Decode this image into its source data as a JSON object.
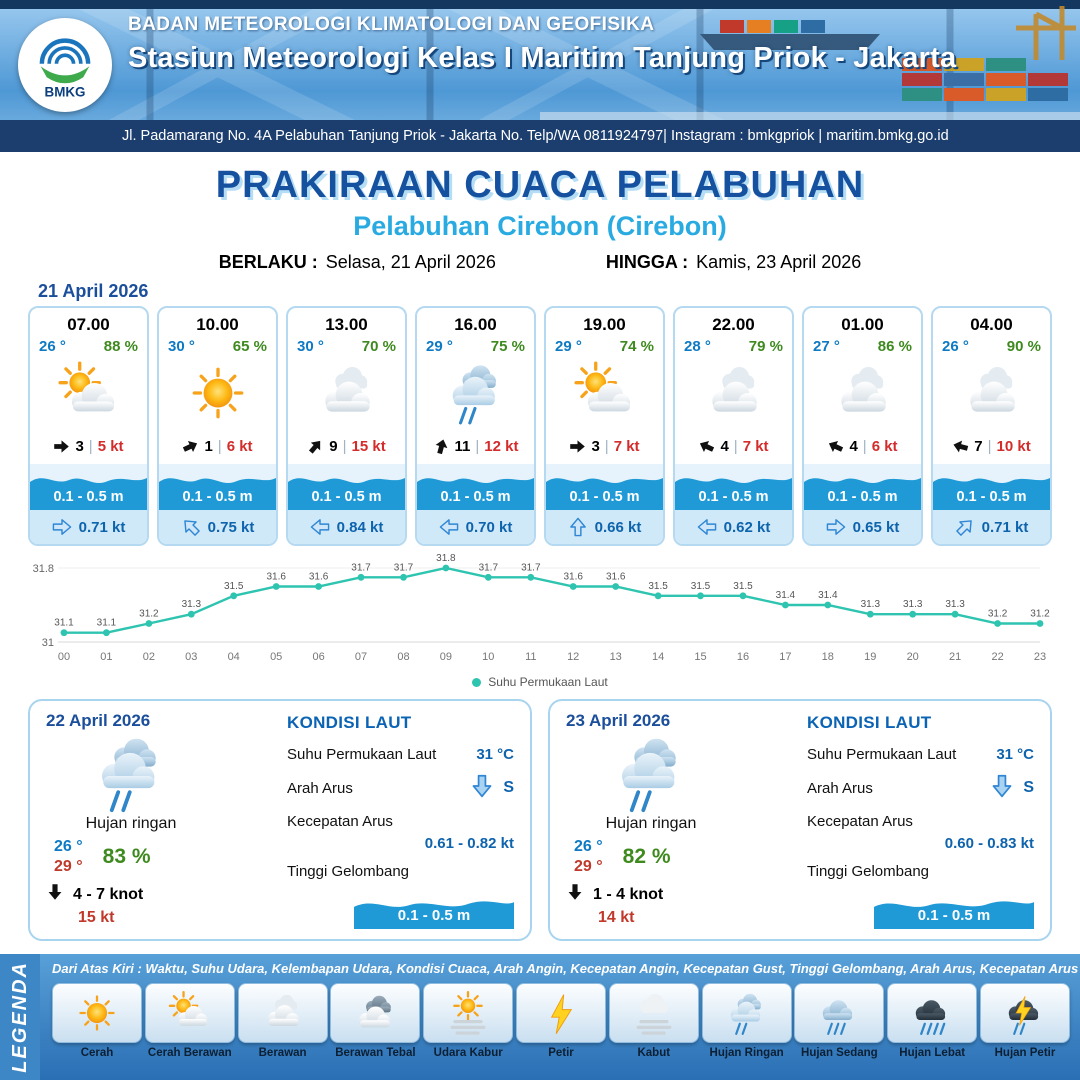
{
  "header": {
    "logo": "BMKG",
    "agency": "BADAN METEOROLOGI KLIMATOLOGI DAN GEOFISIKA",
    "station": "Stasiun Meteorologi Kelas I Maritim Tanjung Priok - Jakarta",
    "address": "Jl. Padamarang No. 4A Pelabuhan Tanjung Priok - Jakarta No. Telp/WA 0811924797| Instagram : bmkgpriok | maritim.bmkg.go.id"
  },
  "title": {
    "main": "PRAKIRAAN CUACA PELABUHAN",
    "port": "Pelabuhan Cirebon (Cirebon)",
    "berlaku_label": "BERLAKU :",
    "berlaku_value": "Selasa, 21 April 2026",
    "hingga_label": "HINGGA :",
    "hingga_value": "Kamis, 23 April 2026"
  },
  "icons": {
    "sep": "|"
  },
  "forecast": {
    "date": "21 April 2026",
    "cards": [
      {
        "time": "07.00",
        "temp": "26 °",
        "humidity": "88 %",
        "icon": "cerah-berawan",
        "wind_speed": "3",
        "gust": "5 kt",
        "wind_rot": 0,
        "wave": "0.1 - 0.5 m",
        "current": "0.71 kt",
        "current_rot": 0
      },
      {
        "time": "10.00",
        "temp": "30 °",
        "humidity": "65 %",
        "icon": "cerah",
        "wind_speed": "1",
        "gust": "6 kt",
        "wind_rot": -25,
        "wave": "0.1 - 0.5 m",
        "current": "0.75 kt",
        "current_rot": -135
      },
      {
        "time": "13.00",
        "temp": "30 °",
        "humidity": "70 %",
        "icon": "berawan",
        "wind_speed": "9",
        "gust": "15 kt",
        "wind_rot": -50,
        "wave": "0.1 - 0.5 m",
        "current": "0.84 kt",
        "current_rot": 180
      },
      {
        "time": "16.00",
        "temp": "29 °",
        "humidity": "75 %",
        "icon": "hujan-ringan",
        "wind_speed": "11",
        "gust": "12 kt",
        "wind_rot": -75,
        "wave": "0.1 - 0.5 m",
        "current": "0.70 kt",
        "current_rot": 180
      },
      {
        "time": "19.00",
        "temp": "29 °",
        "humidity": "74 %",
        "icon": "cerah-berawan",
        "wind_speed": "3",
        "gust": "7 kt",
        "wind_rot": 0,
        "wave": "0.1 - 0.5 m",
        "current": "0.66 kt",
        "current_rot": -90
      },
      {
        "time": "22.00",
        "temp": "28 °",
        "humidity": "79 %",
        "icon": "berawan",
        "wind_speed": "4",
        "gust": "7 kt",
        "wind_rot": 205,
        "wave": "0.1 - 0.5 m",
        "current": "0.62 kt",
        "current_rot": 180
      },
      {
        "time": "01.00",
        "temp": "27 °",
        "humidity": "86 %",
        "icon": "berawan",
        "wind_speed": "4",
        "gust": "6 kt",
        "wind_rot": 205,
        "wave": "0.1 - 0.5 m",
        "current": "0.65 kt",
        "current_rot": 0
      },
      {
        "time": "04.00",
        "temp": "26 °",
        "humidity": "90 %",
        "icon": "berawan",
        "wind_speed": "7",
        "gust": "10 kt",
        "wind_rot": 195,
        "wave": "0.1 - 0.5 m",
        "current": "0.71 kt",
        "current_rot": -45
      }
    ]
  },
  "chart_data": {
    "type": "line",
    "series_name": "Suhu Permukaan Laut",
    "x": [
      "00",
      "01",
      "02",
      "03",
      "04",
      "05",
      "06",
      "07",
      "08",
      "09",
      "10",
      "11",
      "12",
      "13",
      "14",
      "15",
      "16",
      "17",
      "18",
      "19",
      "20",
      "21",
      "22",
      "23"
    ],
    "values": [
      31.1,
      31.1,
      31.2,
      31.3,
      31.5,
      31.6,
      31.6,
      31.7,
      31.7,
      31.8,
      31.7,
      31.7,
      31.6,
      31.6,
      31.5,
      31.5,
      31.5,
      31.4,
      31.4,
      31.3,
      31.3,
      31.3,
      31.2,
      31.2
    ],
    "ylim": [
      31,
      31.8
    ],
    "ylabel": "",
    "xlabel": "",
    "grid": "baseline-only",
    "legend_position": "bottom",
    "line_color": "#2ec4b0"
  },
  "daily": [
    {
      "date": "22 April 2026",
      "icon": "hujan-ringan",
      "condition": "Hujan ringan",
      "temp_min": "26 °",
      "temp_max": "29 °",
      "humidity": "83 %",
      "wind": "4 - 7 knot",
      "gust": "15 kt",
      "sea": {
        "heading": "KONDISI LAUT",
        "sst_label": "Suhu Permukaan Laut",
        "sst_value": "31 °C",
        "current_dir_label": "Arah Arus",
        "current_dir_value": "S",
        "current_speed_label": "Kecepatan Arus",
        "current_speed_value": "0.61 - 0.82 kt",
        "wave_label": "Tinggi Gelombang",
        "wave_value": "0.1 - 0.5 m"
      }
    },
    {
      "date": "23 April 2026",
      "icon": "hujan-ringan",
      "condition": "Hujan ringan",
      "temp_min": "26 °",
      "temp_max": "29 °",
      "humidity": "82 %",
      "wind": "1 - 4 knot",
      "gust": "14 kt",
      "sea": {
        "heading": "KONDISI LAUT",
        "sst_label": "Suhu Permukaan Laut",
        "sst_value": "31 °C",
        "current_dir_label": "Arah Arus",
        "current_dir_value": "S",
        "current_speed_label": "Kecepatan Arus",
        "current_speed_value": "0.60 - 0.83 kt",
        "wave_label": "Tinggi Gelombang",
        "wave_value": "0.1 - 0.5 m"
      }
    }
  ],
  "legend": {
    "title": "LEGENDA",
    "description": "Dari Atas Kiri : Waktu, Suhu Udara, Kelembapan Udara, Kondisi Cuaca, Arah Angin, Kecepatan Angin, Kecepatan Gust, Tinggi Gelombang, Arah Arus, Kecepatan Arus",
    "items": [
      {
        "label": "Cerah",
        "icon": "cerah"
      },
      {
        "label": "Cerah Berawan",
        "icon": "cerah-berawan"
      },
      {
        "label": "Berawan",
        "icon": "berawan"
      },
      {
        "label": "Berawan Tebal",
        "icon": "berawan-tebal"
      },
      {
        "label": "Udara Kabur",
        "icon": "udara-kabur"
      },
      {
        "label": "Petir",
        "icon": "petir"
      },
      {
        "label": "Kabut",
        "icon": "kabut"
      },
      {
        "label": "Hujan Ringan",
        "icon": "hujan-ringan"
      },
      {
        "label": "Hujan Sedang",
        "icon": "hujan-sedang"
      },
      {
        "label": "Hujan Lebat",
        "icon": "hujan-lebat"
      },
      {
        "label": "Hujan Petir",
        "icon": "hujan-petir"
      }
    ]
  }
}
